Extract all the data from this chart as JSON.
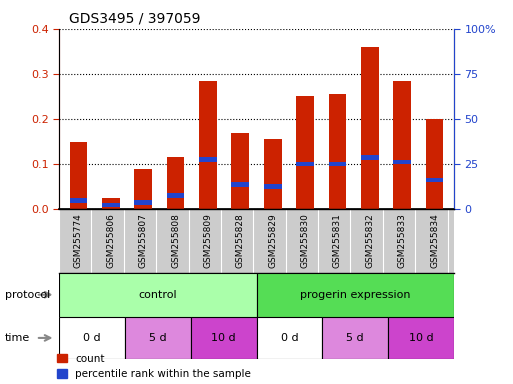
{
  "title": "GDS3495 / 397059",
  "samples": [
    "GSM255774",
    "GSM255806",
    "GSM255807",
    "GSM255808",
    "GSM255809",
    "GSM255828",
    "GSM255829",
    "GSM255830",
    "GSM255831",
    "GSM255832",
    "GSM255833",
    "GSM255834"
  ],
  "count_values": [
    0.15,
    0.025,
    0.09,
    0.115,
    0.285,
    0.17,
    0.155,
    0.25,
    0.255,
    0.36,
    0.285,
    0.2
  ],
  "percentile_values": [
    0.02,
    0.01,
    0.015,
    0.03,
    0.11,
    0.055,
    0.05,
    0.1,
    0.1,
    0.115,
    0.105,
    0.065
  ],
  "left_ylim": [
    0,
    0.4
  ],
  "right_ylim": [
    0,
    100
  ],
  "left_yticks": [
    0,
    0.1,
    0.2,
    0.3,
    0.4
  ],
  "right_yticks": [
    0,
    25,
    50,
    75,
    100
  ],
  "right_yticklabels": [
    "0",
    "25",
    "50",
    "75",
    "100%"
  ],
  "protocol_labels": [
    "control",
    "progerin expression"
  ],
  "protocol_ranges": [
    [
      0,
      6
    ],
    [
      6,
      12
    ]
  ],
  "protocol_colors": [
    "#aaffaa",
    "#55dd55"
  ],
  "time_labels": [
    "0 d",
    "5 d",
    "10 d",
    "0 d",
    "5 d",
    "10 d"
  ],
  "time_ranges": [
    [
      0,
      2
    ],
    [
      2,
      4
    ],
    [
      4,
      6
    ],
    [
      6,
      8
    ],
    [
      8,
      10
    ],
    [
      10,
      12
    ]
  ],
  "time_colors": [
    "#ffffff",
    "#dd88dd",
    "#cc44cc",
    "#ffffff",
    "#dd88dd",
    "#cc44cc"
  ],
  "bar_color": "#cc2200",
  "percentile_color": "#2244cc",
  "bar_width": 0.55,
  "bg_color": "#ffffff",
  "tick_color_left": "#cc2200",
  "tick_color_right": "#2244cc",
  "legend_count_label": "count",
  "legend_pct_label": "percentile rank within the sample",
  "xtick_bg_color": "#cccccc",
  "label_color": "#888888"
}
